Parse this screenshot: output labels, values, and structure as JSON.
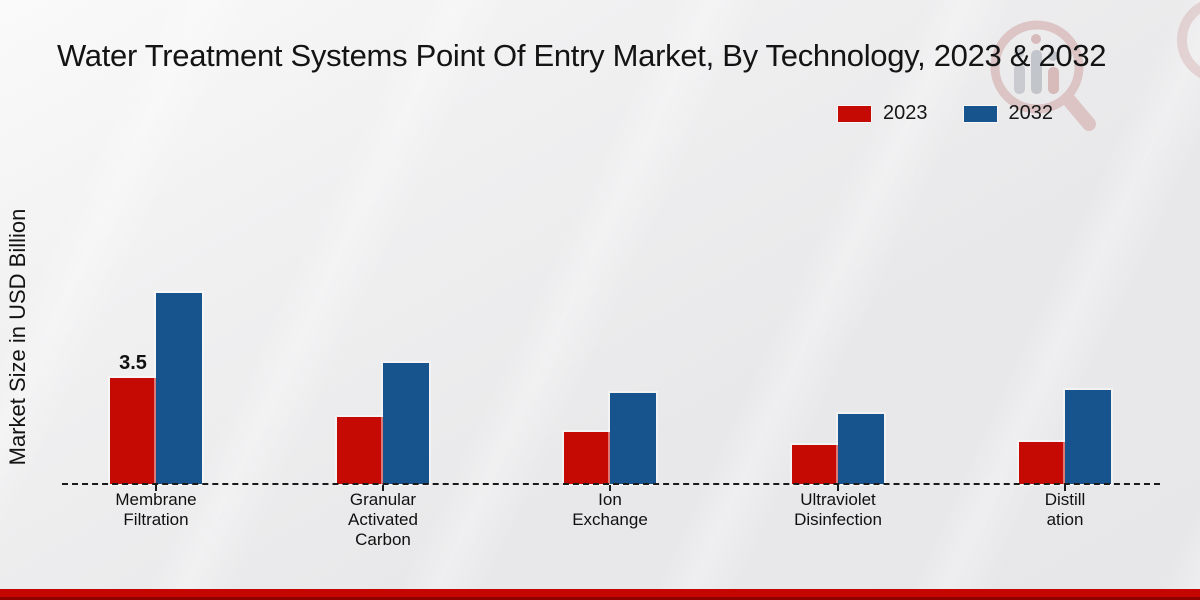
{
  "title": "Water Treatment Systems Point Of Entry Market, By Technology, 2023 & 2032",
  "y_axis_label": "Market Size in USD Billion",
  "legend": [
    {
      "label": "2023",
      "color": "#c40a03"
    },
    {
      "label": "2032",
      "color": "#17538d"
    }
  ],
  "colors": {
    "red_series": "#c40a03",
    "blue_series": "#17538d",
    "background": "#ebebec",
    "baseline": "#1a1a1a",
    "bottom_band": "#c50500",
    "bottom_band_dark": "#8e0300",
    "text": "#141414"
  },
  "chart_data": {
    "type": "bar",
    "title": "Water Treatment Systems Point Of Entry Market, By Technology, 2023 & 2032",
    "xlabel": "",
    "ylabel": "Market Size in USD Billion",
    "categories": [
      "Membrane\nFiltration",
      "Granular\nActivated\nCarbon",
      "Ion\nExchange",
      "Ultraviolet\nDisinfection",
      "Distill\nation"
    ],
    "series": [
      {
        "name": "2023",
        "color": "#c40a03",
        "values": [
          3.5,
          2.2,
          1.7,
          1.3,
          1.4
        ],
        "data_labels": [
          "3.5",
          "",
          "",
          "",
          ""
        ]
      },
      {
        "name": "2032",
        "color": "#17538d",
        "values": [
          6.3,
          4.0,
          3.0,
          2.3,
          3.1
        ],
        "data_labels": [
          "",
          "",
          "",
          "",
          ""
        ]
      }
    ],
    "ylim": [
      0,
      7
    ],
    "grid": false,
    "y_tick_labels_visible": false,
    "baseline_style": "dashed",
    "legend_position": "top-right"
  }
}
